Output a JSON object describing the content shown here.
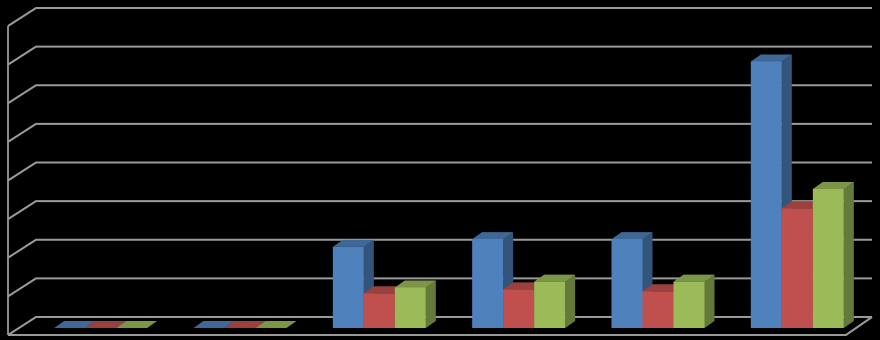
{
  "chart_data": {
    "type": "bar3d",
    "categories": [
      null,
      null,
      null,
      null,
      null,
      null
    ],
    "series": [
      {
        "color": "#4f81bd",
        "values": [
          0,
          0,
          2.1,
          2.3,
          2.3,
          6.9
        ]
      },
      {
        "color": "#c0504d",
        "values": [
          0,
          0,
          0.9,
          1.0,
          0.95,
          3.1
        ]
      },
      {
        "color": "#9bbb59",
        "values": [
          0,
          0,
          1.05,
          1.2,
          1.2,
          3.6
        ]
      }
    ],
    "ylim": [
      0,
      8
    ],
    "yticks": [
      0,
      1,
      2,
      3,
      4,
      5,
      6,
      7,
      8
    ],
    "grid": true
  }
}
